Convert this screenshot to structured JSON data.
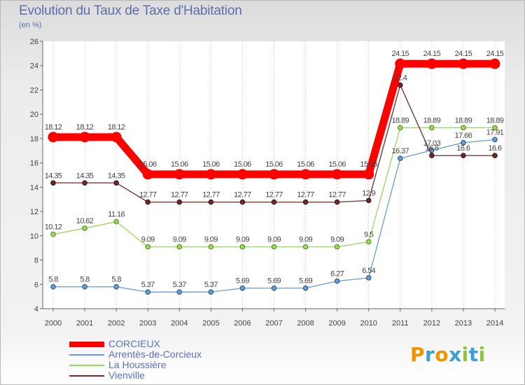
{
  "header": {
    "title": "Evolution du Taux de Taxe d'Habitation",
    "unit": "(en %)"
  },
  "logo": {
    "letters": [
      "P",
      "r",
      "o",
      "x",
      "i",
      "t",
      "i"
    ],
    "colors": [
      "#f29400",
      "#3aa0d8",
      "#f29400",
      "#3aa0d8",
      "#8cc63f",
      "#3aa0d8",
      "#8cc63f"
    ]
  },
  "chart_data": {
    "type": "line",
    "x": [
      "2000",
      "2001",
      "2002",
      "2003",
      "2004",
      "2005",
      "2006",
      "2007",
      "2008",
      "2009",
      "2010",
      "2011",
      "2012",
      "2013",
      "2014"
    ],
    "ylim": [
      4,
      26
    ],
    "yticks": [
      4,
      6,
      8,
      10,
      12,
      14,
      16,
      18,
      20,
      22,
      24,
      26
    ],
    "grid": "vertical dotted",
    "legend_position": "bottom-left",
    "series": [
      {
        "name": "CORCIEUX",
        "color": "#ff0000",
        "values": [
          18.12,
          18.12,
          18.12,
          15.06,
          15.06,
          15.06,
          15.06,
          15.06,
          15.06,
          15.06,
          15.06,
          24.15,
          24.15,
          24.15,
          24.15
        ],
        "labels": [
          "18.12",
          "18.12",
          "18.12",
          "15.06",
          "15.06",
          "15.06",
          "15.06",
          "15.06",
          "15.06",
          "15.06",
          "15.06",
          "24.15",
          "24.15",
          "24.15",
          "24.15"
        ]
      },
      {
        "name": "Arrentès-de-Corcieux",
        "color": "#6b9ccf",
        "values": [
          5.8,
          5.8,
          5.8,
          5.37,
          5.37,
          5.37,
          5.69,
          5.69,
          5.69,
          6.27,
          6.54,
          16.37,
          17.03,
          17.66,
          17.91
        ],
        "labels": [
          "5.8",
          "5.8",
          "5.8",
          "5.37",
          "5.37",
          "5.37",
          "5.69",
          "5.69",
          "5.69",
          "6.27",
          "6.54",
          "16.37",
          "17.03",
          "17.66",
          "17.91"
        ]
      },
      {
        "name": "La Houssière",
        "color": "#9bd65f",
        "values": [
          10.12,
          10.62,
          11.16,
          9.09,
          9.09,
          9.09,
          9.09,
          9.09,
          9.09,
          9.09,
          9.5,
          18.89,
          18.89,
          18.89,
          18.89
        ],
        "labels": [
          "10.12",
          "10.62",
          "11.16",
          "9.09",
          "9.09",
          "9.09",
          "9.09",
          "9.09",
          "9.09",
          "9.09",
          "9.5",
          "18.89",
          "18.89",
          "18.89",
          "18.89"
        ]
      },
      {
        "name": "Vienville",
        "color": "#6e2a2a",
        "values": [
          14.35,
          14.35,
          14.35,
          12.77,
          12.77,
          12.77,
          12.77,
          12.77,
          12.77,
          12.77,
          12.9,
          22.4,
          16.6,
          16.6,
          16.6
        ],
        "labels": [
          "14.35",
          "14.35",
          "14.35",
          "12.77",
          "12.77",
          "12.77",
          "12.77",
          "12.77",
          "12.77",
          "12.77",
          "12.9",
          "22.4",
          "16.6",
          "16.6",
          "16.6"
        ]
      }
    ]
  }
}
